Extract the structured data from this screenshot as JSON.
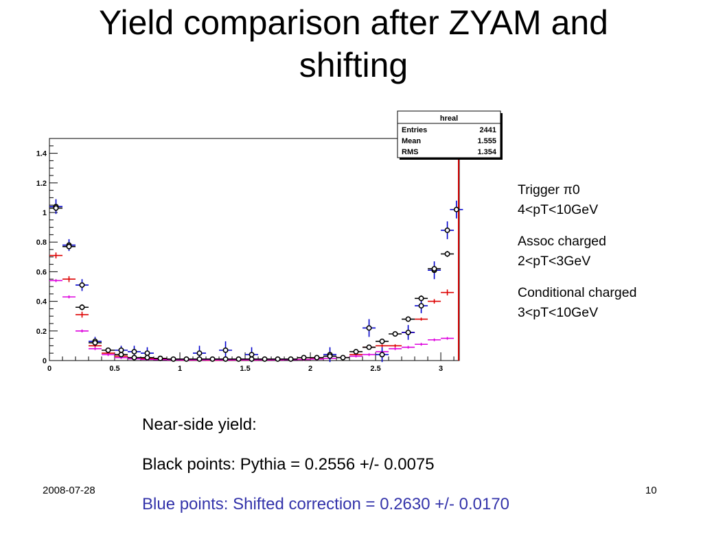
{
  "slide": {
    "title": "Yield comparison after ZYAM and shifting",
    "date": "2008-07-28",
    "page_number": "10"
  },
  "stats_box": {
    "title": "hreal",
    "rows": [
      {
        "label": "Entries",
        "value": "2441"
      },
      {
        "label": "Mean",
        "value": "1.555"
      },
      {
        "label": "RMS",
        "value": "1.354"
      }
    ]
  },
  "side_notes": {
    "trigger_line1": "Trigger π0",
    "trigger_line2": "4<pT<10GeV",
    "assoc_line1": "Assoc charged",
    "assoc_line2": "2<pT<3GeV",
    "cond_line1": "Conditional charged",
    "cond_line2": "3<pT<10GeV"
  },
  "bottom_notes": {
    "line1": "Near-side yield:",
    "line2": "Black points: Pythia = 0.2556 +/- 0.0075",
    "line3": "Blue points:  Shifted correction = 0.2630 +/- 0.0170"
  },
  "chart_data": {
    "type": "scatter",
    "xlim": [
      0,
      3.1416
    ],
    "ylim": [
      0,
      1.5
    ],
    "x_ticks": [
      "0",
      "0.5",
      "1",
      "1.5",
      "2",
      "2.5",
      "3"
    ],
    "y_ticks": [
      "0",
      "0.2",
      "0.4",
      "0.6",
      "0.8",
      "1",
      "1.2",
      "1.4"
    ],
    "grid": false,
    "colors": {
      "red": "#dd0000",
      "magenta": "#dd00dd",
      "blue": "#0000cc",
      "black": "#000000",
      "vline": "#cc0000"
    },
    "vertical_line_x": 3.1416,
    "series": [
      {
        "style": "red",
        "xerr": 0.05,
        "points": [
          {
            "x": 0.05,
            "y": 0.71,
            "e": 0.02
          },
          {
            "x": 0.15,
            "y": 0.55,
            "e": 0.02
          },
          {
            "x": 0.25,
            "y": 0.31,
            "e": 0.02
          },
          {
            "x": 0.35,
            "y": 0.1,
            "e": 0.01
          },
          {
            "x": 0.45,
            "y": 0.05,
            "e": 0.01
          },
          {
            "x": 0.55,
            "y": 0.03,
            "e": 0.01
          },
          {
            "x": 0.65,
            "y": 0.02,
            "e": 0.01
          },
          {
            "x": 0.75,
            "y": 0.015,
            "e": 0.01
          },
          {
            "x": 0.85,
            "y": 0.01,
            "e": 0.005
          },
          {
            "x": 0.95,
            "y": 0.005,
            "e": 0.005
          },
          {
            "x": 1.05,
            "y": 0.003,
            "e": 0.005
          },
          {
            "x": 1.15,
            "y": 0.003,
            "e": 0.005
          },
          {
            "x": 1.25,
            "y": 0.002,
            "e": 0.005
          },
          {
            "x": 1.35,
            "y": 0.003,
            "e": 0.005
          },
          {
            "x": 1.45,
            "y": 0.003,
            "e": 0.005
          },
          {
            "x": 1.55,
            "y": 0.003,
            "e": 0.005
          },
          {
            "x": 1.65,
            "y": 0.004,
            "e": 0.005
          },
          {
            "x": 1.75,
            "y": 0.005,
            "e": 0.005
          },
          {
            "x": 1.85,
            "y": 0.006,
            "e": 0.005
          },
          {
            "x": 1.95,
            "y": 0.008,
            "e": 0.005
          },
          {
            "x": 2.05,
            "y": 0.012,
            "e": 0.005
          },
          {
            "x": 2.15,
            "y": 0.015,
            "e": 0.01
          },
          {
            "x": 2.25,
            "y": 0.02,
            "e": 0.01
          },
          {
            "x": 2.35,
            "y": 0.04,
            "e": 0.01
          },
          {
            "x": 2.45,
            "y": 0.09,
            "e": 0.01
          },
          {
            "x": 2.55,
            "y": 0.1,
            "e": 0.01
          },
          {
            "x": 2.65,
            "y": 0.1,
            "e": 0.01
          },
          {
            "x": 2.75,
            "y": 0.19,
            "e": 0.01
          },
          {
            "x": 2.85,
            "y": 0.28,
            "e": 0.01
          },
          {
            "x": 2.95,
            "y": 0.4,
            "e": 0.015
          },
          {
            "x": 3.05,
            "y": 0.46,
            "e": 0.02
          }
        ]
      },
      {
        "style": "magenta",
        "xerr": 0.05,
        "points": [
          {
            "x": 0.05,
            "y": 0.54,
            "e": 0.01
          },
          {
            "x": 0.15,
            "y": 0.43,
            "e": 0.01
          },
          {
            "x": 0.25,
            "y": 0.2,
            "e": 0.01
          },
          {
            "x": 0.35,
            "y": 0.08,
            "e": 0.005
          },
          {
            "x": 0.45,
            "y": 0.04,
            "e": 0.005
          },
          {
            "x": 0.55,
            "y": 0.02,
            "e": 0.005
          },
          {
            "x": 0.65,
            "y": 0.012,
            "e": 0.005
          },
          {
            "x": 0.75,
            "y": 0.008,
            "e": 0.005
          },
          {
            "x": 0.85,
            "y": 0.006,
            "e": 0.005
          },
          {
            "x": 0.95,
            "y": 0.005,
            "e": 0.005
          },
          {
            "x": 1.05,
            "y": 0.004,
            "e": 0.005
          },
          {
            "x": 1.15,
            "y": 0.004,
            "e": 0.005
          },
          {
            "x": 1.25,
            "y": 0.004,
            "e": 0.005
          },
          {
            "x": 1.35,
            "y": 0.004,
            "e": 0.005
          },
          {
            "x": 1.45,
            "y": 0.004,
            "e": 0.005
          },
          {
            "x": 1.55,
            "y": 0.004,
            "e": 0.005
          },
          {
            "x": 1.65,
            "y": 0.005,
            "e": 0.005
          },
          {
            "x": 1.75,
            "y": 0.005,
            "e": 0.005
          },
          {
            "x": 1.85,
            "y": 0.006,
            "e": 0.005
          },
          {
            "x": 1.95,
            "y": 0.007,
            "e": 0.005
          },
          {
            "x": 2.05,
            "y": 0.01,
            "e": 0.005
          },
          {
            "x": 2.15,
            "y": 0.015,
            "e": 0.005
          },
          {
            "x": 2.25,
            "y": 0.02,
            "e": 0.005
          },
          {
            "x": 2.35,
            "y": 0.03,
            "e": 0.005
          },
          {
            "x": 2.45,
            "y": 0.04,
            "e": 0.005
          },
          {
            "x": 2.55,
            "y": 0.06,
            "e": 0.005
          },
          {
            "x": 2.65,
            "y": 0.08,
            "e": 0.005
          },
          {
            "x": 2.75,
            "y": 0.09,
            "e": 0.005
          },
          {
            "x": 2.85,
            "y": 0.11,
            "e": 0.005
          },
          {
            "x": 2.95,
            "y": 0.14,
            "e": 0.005
          },
          {
            "x": 3.05,
            "y": 0.15,
            "e": 0.005
          }
        ]
      },
      {
        "style": "blue",
        "xerr": 0.05,
        "points": [
          {
            "x": 0.05,
            "y": 1.04,
            "e": 0.05
          },
          {
            "x": 0.15,
            "y": 0.78,
            "e": 0.04
          },
          {
            "x": 0.25,
            "y": 0.51,
            "e": 0.04
          },
          {
            "x": 0.35,
            "y": 0.13,
            "e": 0.03
          },
          {
            "x": 0.55,
            "y": 0.07,
            "e": 0.03
          },
          {
            "x": 0.65,
            "y": 0.06,
            "e": 0.04
          },
          {
            "x": 0.75,
            "y": 0.05,
            "e": 0.04
          },
          {
            "x": 1.15,
            "y": 0.05,
            "e": 0.05
          },
          {
            "x": 1.35,
            "y": 0.07,
            "e": 0.06
          },
          {
            "x": 1.55,
            "y": 0.04,
            "e": 0.05
          },
          {
            "x": 2.15,
            "y": 0.04,
            "e": 0.05
          },
          {
            "x": 2.45,
            "y": 0.22,
            "e": 0.06
          },
          {
            "x": 2.55,
            "y": 0.04,
            "e": 0.05
          },
          {
            "x": 2.75,
            "y": 0.19,
            "e": 0.05
          },
          {
            "x": 2.85,
            "y": 0.37,
            "e": 0.05
          },
          {
            "x": 2.95,
            "y": 0.61,
            "e": 0.06
          },
          {
            "x": 3.05,
            "y": 0.88,
            "e": 0.06
          },
          {
            "x": 3.12,
            "y": 1.02,
            "e": 0.06
          }
        ]
      },
      {
        "style": "black",
        "xerr": 0.05,
        "points": [
          {
            "x": 0.05,
            "y": 1.03,
            "e": 0.02
          },
          {
            "x": 0.15,
            "y": 0.77,
            "e": 0.02
          },
          {
            "x": 0.25,
            "y": 0.36,
            "e": 0.02
          },
          {
            "x": 0.35,
            "y": 0.12,
            "e": 0.01
          },
          {
            "x": 0.45,
            "y": 0.07,
            "e": 0.01
          },
          {
            "x": 0.55,
            "y": 0.04,
            "e": 0.01
          },
          {
            "x": 0.65,
            "y": 0.02,
            "e": 0.01
          },
          {
            "x": 0.75,
            "y": 0.02,
            "e": 0.01
          },
          {
            "x": 0.85,
            "y": 0.015,
            "e": 0.005
          },
          {
            "x": 0.95,
            "y": 0.01,
            "e": 0.005
          },
          {
            "x": 1.05,
            "y": 0.01,
            "e": 0.005
          },
          {
            "x": 1.15,
            "y": 0.01,
            "e": 0.005
          },
          {
            "x": 1.25,
            "y": 0.01,
            "e": 0.005
          },
          {
            "x": 1.35,
            "y": 0.01,
            "e": 0.005
          },
          {
            "x": 1.45,
            "y": 0.01,
            "e": 0.005
          },
          {
            "x": 1.55,
            "y": 0.01,
            "e": 0.005
          },
          {
            "x": 1.65,
            "y": 0.01,
            "e": 0.005
          },
          {
            "x": 1.75,
            "y": 0.01,
            "e": 0.005
          },
          {
            "x": 1.85,
            "y": 0.01,
            "e": 0.005
          },
          {
            "x": 1.95,
            "y": 0.02,
            "e": 0.005
          },
          {
            "x": 2.05,
            "y": 0.02,
            "e": 0.005
          },
          {
            "x": 2.15,
            "y": 0.03,
            "e": 0.01
          },
          {
            "x": 2.25,
            "y": 0.02,
            "e": 0.01
          },
          {
            "x": 2.35,
            "y": 0.06,
            "e": 0.01
          },
          {
            "x": 2.45,
            "y": 0.09,
            "e": 0.01
          },
          {
            "x": 2.55,
            "y": 0.13,
            "e": 0.01
          },
          {
            "x": 2.65,
            "y": 0.18,
            "e": 0.01
          },
          {
            "x": 2.75,
            "y": 0.28,
            "e": 0.015
          },
          {
            "x": 2.85,
            "y": 0.42,
            "e": 0.02
          },
          {
            "x": 2.95,
            "y": 0.62,
            "e": 0.02
          },
          {
            "x": 3.05,
            "y": 0.72,
            "e": 0.02
          }
        ]
      }
    ]
  }
}
